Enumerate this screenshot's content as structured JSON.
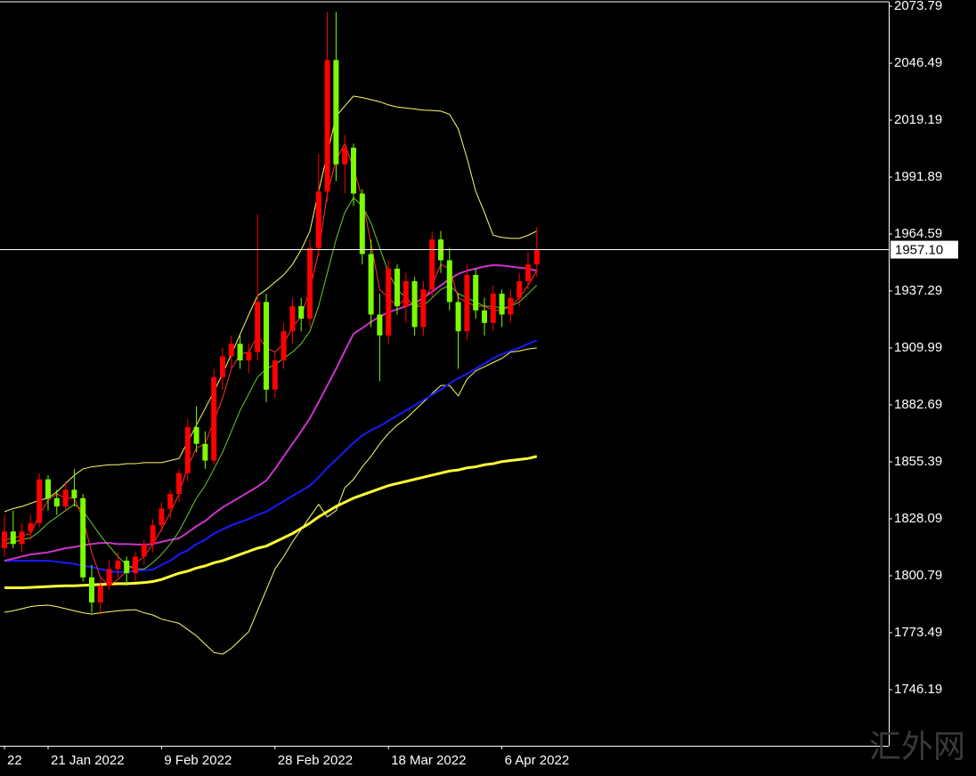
{
  "chart_data": {
    "type": "candlestick",
    "categories": [
      "22",
      null,
      null,
      null,
      null,
      "21 Jan 2022",
      null,
      null,
      null,
      null,
      null,
      null,
      null,
      null,
      null,
      null,
      null,
      null,
      "9 Feb 2022",
      null,
      null,
      null,
      null,
      null,
      null,
      null,
      null,
      null,
      null,
      null,
      null,
      "28 Feb 2022",
      null,
      null,
      null,
      null,
      null,
      null,
      null,
      null,
      null,
      null,
      null,
      null,
      "18 Mar 2022",
      null,
      null,
      null,
      null,
      null,
      null,
      null,
      null,
      null,
      null,
      null,
      null,
      "6 Apr 2022",
      null,
      null,
      null,
      null
    ],
    "open": [
      1814,
      1822,
      1816,
      1822,
      1826,
      1847,
      1838,
      1834,
      1842,
      1838,
      1800,
      1788,
      1796,
      1804,
      1808,
      1802,
      1810,
      1816,
      1825,
      1833,
      1840,
      1850,
      1872,
      1864,
      1856,
      1896,
      1906,
      1912,
      1904,
      1908,
      1932,
      1890,
      1904,
      1918,
      1930,
      1924,
      1958,
      1985,
      2048,
      1998,
      2006,
      1984,
      1955,
      1926,
      1916,
      1948,
      1930,
      1942,
      1920,
      1938,
      1962,
      1952,
      1932,
      1918,
      1945,
      1928,
      1922,
      1936,
      1926,
      1934,
      1942,
      1950
    ],
    "high": [
      1830,
      1832,
      1826,
      1830,
      1850,
      1849,
      1842,
      1846,
      1852,
      1840,
      1806,
      1800,
      1808,
      1812,
      1810,
      1812,
      1818,
      1828,
      1836,
      1842,
      1852,
      1876,
      1882,
      1870,
      1900,
      1910,
      1916,
      1916,
      1912,
      1974,
      1936,
      1908,
      1922,
      1934,
      1934,
      1962,
      2003,
      2071,
      2071,
      2012,
      2008,
      1986,
      1962,
      1936,
      1952,
      1950,
      1946,
      1944,
      1942,
      1966,
      1966,
      1958,
      1936,
      1950,
      1948,
      1934,
      1940,
      1938,
      1938,
      1946,
      1956,
      1968
    ],
    "low": [
      1810,
      1814,
      1812,
      1818,
      1824,
      1832,
      1830,
      1832,
      1834,
      1798,
      1783,
      1782,
      1794,
      1800,
      1796,
      1798,
      1806,
      1812,
      1822,
      1828,
      1836,
      1846,
      1860,
      1852,
      1854,
      1890,
      1900,
      1900,
      1898,
      1904,
      1884,
      1886,
      1900,
      1912,
      1918,
      1920,
      1954,
      1980,
      1990,
      1984,
      1978,
      1950,
      1920,
      1894,
      1912,
      1926,
      1922,
      1916,
      1916,
      1934,
      1946,
      1928,
      1900,
      1914,
      1924,
      1916,
      1918,
      1920,
      1922,
      1930,
      1938,
      1944
    ],
    "close": [
      1822,
      1816,
      1822,
      1826,
      1847,
      1838,
      1834,
      1842,
      1838,
      1800,
      1788,
      1796,
      1804,
      1808,
      1802,
      1810,
      1816,
      1825,
      1833,
      1840,
      1850,
      1872,
      1864,
      1856,
      1896,
      1906,
      1912,
      1904,
      1908,
      1932,
      1890,
      1904,
      1918,
      1930,
      1924,
      1958,
      1985,
      2048,
      1998,
      2006,
      1984,
      1955,
      1926,
      1916,
      1948,
      1930,
      1942,
      1920,
      1938,
      1962,
      1952,
      1932,
      1918,
      1945,
      1928,
      1922,
      1936,
      1926,
      1934,
      1942,
      1950,
      1957.1
    ],
    "up_color": "#ff0000",
    "down_color": "#7cfc00",
    "lines": [
      {
        "color": "#ffff66",
        "width": 1,
        "values": [
          1831.5,
          1833,
          1834,
          1835.5,
          1837,
          1838,
          1841,
          1845,
          1849,
          1852,
          1853,
          1853.5,
          1854,
          1854,
          1854.5,
          1854.5,
          1855,
          1855,
          1855,
          1856,
          1857,
          1865,
          1873,
          1881,
          1889,
          1897.6,
          1907,
          1916.5,
          1926,
          1935,
          1938,
          1941.5,
          1945,
          1950,
          1957,
          1966,
          1985,
          2003,
          2021,
          2026,
          2030.7,
          2030,
          2029,
          2028,
          2026.5,
          2025.5,
          2025,
          2024.5,
          2024,
          2023.8,
          2023.5,
          2022,
          2015,
          2001,
          1985,
          1975,
          1964,
          1963,
          1962.5,
          1962.5,
          1964,
          1966
        ]
      },
      {
        "color": "#ffff66",
        "width": 1,
        "values": [
          1783.3,
          1784,
          1785,
          1786,
          1786.5,
          1786.7,
          1786,
          1785,
          1784,
          1783,
          1782.4,
          1783,
          1783.5,
          1784,
          1784.3,
          1784.5,
          1783,
          1782,
          1780,
          1779,
          1778,
          1775,
          1772,
          1768,
          1764,
          1763.2,
          1766,
          1770,
          1774,
          1784,
          1794,
          1804,
          1810,
          1817,
          1823,
          1829,
          1835,
          1829,
          1832,
          1843,
          1847,
          1853,
          1858,
          1864,
          1869,
          1873,
          1876,
          1880,
          1884,
          1888,
          1892,
          1892,
          1887,
          1895,
          1899,
          1901,
          1903,
          1905,
          1908,
          1908.5,
          1909.5,
          1910
        ]
      },
      {
        "color": "#ffff33",
        "width": 3,
        "values": [
          1795,
          1795,
          1795,
          1795.2,
          1795.4,
          1795.6,
          1795.8,
          1796,
          1796,
          1796.2,
          1796.4,
          1796.6,
          1796.8,
          1797,
          1797,
          1797.2,
          1797.5,
          1798,
          1799,
          1800.5,
          1802,
          1803,
          1804.5,
          1805.5,
          1807,
          1808,
          1809.5,
          1811,
          1812.5,
          1814,
          1815,
          1817,
          1819,
          1821,
          1823.5,
          1826,
          1829,
          1831.5,
          1834,
          1836,
          1838,
          1839.5,
          1841,
          1842.5,
          1844,
          1845,
          1846,
          1847,
          1848,
          1849,
          1850,
          1851,
          1851.5,
          1852.5,
          1853,
          1854,
          1854.5,
          1855.5,
          1856,
          1856.5,
          1857,
          1858
        ]
      },
      {
        "color": "#1a1aff",
        "width": 2,
        "values": [
          1808,
          1808,
          1808,
          1808,
          1808,
          1808,
          1807.5,
          1807,
          1806.5,
          1805.5,
          1805,
          1804,
          1803,
          1802.5,
          1802.8,
          1803,
          1803.5,
          1803.7,
          1806,
          1808,
          1811,
          1813,
          1816,
          1818,
          1821,
          1823,
          1825,
          1826.5,
          1828,
          1830,
          1831.5,
          1834,
          1836.5,
          1839,
          1841.5,
          1844,
          1848,
          1852.5,
          1856.5,
          1860.5,
          1864.5,
          1868,
          1870.5,
          1872.5,
          1875,
          1877.5,
          1880,
          1882.5,
          1885,
          1887.5,
          1890,
          1893,
          1895.5,
          1897.5,
          1900,
          1902.5,
          1905,
          1907,
          1908.5,
          1910,
          1912,
          1913.5
        ]
      },
      {
        "color": "#cc33cc",
        "width": 2,
        "values": [
          1808,
          1809,
          1810,
          1811,
          1811.5,
          1812,
          1813,
          1814,
          1814.5,
          1815.5,
          1816,
          1816.5,
          1816.5,
          1816,
          1816,
          1815.8,
          1815.7,
          1816,
          1817,
          1818,
          1818.7,
          1821.5,
          1824.5,
          1827,
          1830.5,
          1833.6,
          1836,
          1838.5,
          1841,
          1843.5,
          1846.4,
          1852,
          1858,
          1864,
          1870,
          1876.3,
          1884,
          1892,
          1900,
          1908.5,
          1916.8,
          1919.5,
          1922.5,
          1925,
          1927,
          1928.5,
          1930,
          1931.5,
          1934,
          1937,
          1940,
          1943,
          1945.5,
          1947,
          1948,
          1949,
          1949.7,
          1949.5,
          1949,
          1948.5,
          1948,
          1947
        ]
      },
      {
        "color": "#66cc33",
        "width": 1,
        "values": [
          1816,
          1817,
          1818,
          1819,
          1822,
          1826,
          1829,
          1832,
          1835,
          1832,
          1826,
          1820,
          1815,
          1810,
          1806,
          1804,
          1804,
          1807,
          1811,
          1816,
          1822,
          1830,
          1838,
          1844,
          1852,
          1860,
          1870,
          1880,
          1888,
          1896,
          1900,
          1902,
          1905,
          1908,
          1912,
          1918,
          1930,
          1946,
          1962,
          1975,
          1982,
          1978,
          1970,
          1958,
          1946,
          1938,
          1934,
          1930,
          1930,
          1934,
          1938,
          1940,
          1936,
          1934,
          1932,
          1930,
          1930,
          1929,
          1930,
          1932,
          1936,
          1940
        ]
      },
      {
        "color": "#ff3333",
        "width": 1,
        "values": [
          1818,
          1819,
          1820,
          1821,
          1830,
          1837,
          1840,
          1838,
          1838,
          1828,
          1812,
          1800,
          1796,
          1799,
          1803,
          1807,
          1810,
          1816,
          1823,
          1831,
          1840,
          1853,
          1862,
          1864,
          1875,
          1886,
          1900,
          1907,
          1908,
          1916,
          1910,
          1908,
          1912,
          1920,
          1925,
          1938,
          1956,
          1984,
          2000,
          2008,
          1996,
          1982,
          1960,
          1938,
          1934,
          1930,
          1934,
          1930,
          1932,
          1940,
          1950,
          1948,
          1934,
          1932,
          1930,
          1930,
          1928,
          1928,
          1930,
          1934,
          1940,
          1947
        ]
      }
    ],
    "ylim": [
      1719.3,
      2075.92
    ],
    "yticks": [
      2073.79,
      2046.49,
      2019.19,
      1991.89,
      1964.59,
      1937.29,
      1909.99,
      1882.69,
      1855.39,
      1828.09,
      1800.79,
      1773.49,
      1746.19
    ],
    "current_price": {
      "value": 1957.1,
      "label": "1957.10"
    },
    "watermark": "汇外网"
  }
}
